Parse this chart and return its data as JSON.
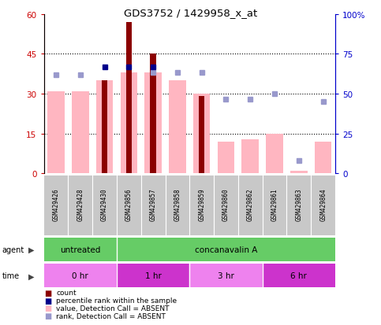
{
  "title": "GDS3752 / 1429958_x_at",
  "samples": [
    "GSM429426",
    "GSM429428",
    "GSM429430",
    "GSM429856",
    "GSM429857",
    "GSM429858",
    "GSM429859",
    "GSM429860",
    "GSM429862",
    "GSM429861",
    "GSM429863",
    "GSM429864"
  ],
  "count": [
    0,
    0,
    35,
    57,
    45,
    0,
    29,
    0,
    0,
    0,
    0,
    0
  ],
  "pink_bar": [
    31,
    31,
    35,
    38,
    38,
    35,
    30,
    12,
    13,
    15,
    1,
    12
  ],
  "dark_blue_square": [
    null,
    null,
    40,
    40,
    40,
    null,
    null,
    null,
    null,
    null,
    null,
    null
  ],
  "light_blue_square": [
    37,
    37,
    null,
    null,
    38,
    38,
    38,
    28,
    28,
    30,
    5,
    27
  ],
  "ylim_left": [
    0,
    60
  ],
  "ylim_right": [
    0,
    100
  ],
  "yticks_left": [
    0,
    15,
    30,
    45,
    60
  ],
  "yticks_right": [
    0,
    25,
    50,
    75,
    100
  ],
  "yticklabels_right": [
    "0",
    "25",
    "50",
    "75",
    "100%"
  ],
  "count_color": "#8B0000",
  "pink_color": "#FFB6C1",
  "blue_sq_color": "#00008B",
  "light_blue_color": "#9999CC",
  "bg_color": "#FFFFFF",
  "label_color_left": "#CC0000",
  "label_color_right": "#0000CC",
  "agent_green": "#66CC66",
  "time_pink_light": "#EE82EE",
  "time_pink_mid": "#CC44CC",
  "time_pink_dark": "#CC00CC",
  "legend_items": [
    {
      "color": "#8B0000",
      "label": "count"
    },
    {
      "color": "#00008B",
      "label": "percentile rank within the sample"
    },
    {
      "color": "#FFB6C1",
      "label": "value, Detection Call = ABSENT"
    },
    {
      "color": "#9999CC",
      "label": "rank, Detection Call = ABSENT"
    }
  ]
}
